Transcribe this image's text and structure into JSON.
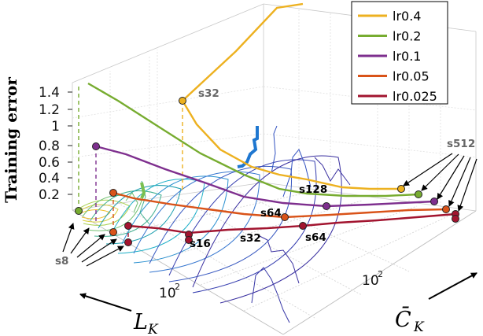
{
  "chart_data": {
    "type": "line",
    "view": "3d",
    "ylabel": "Training error",
    "xlabel": {
      "main": "L",
      "sub": "K"
    },
    "zlabel": {
      "main": "C̄",
      "sub": "K"
    },
    "yticks": [
      "0.2",
      "0.4",
      "0.6",
      "0.8",
      "1",
      "1.2",
      "1.4"
    ],
    "ylim": [
      0,
      1.5
    ],
    "xtick_label": {
      "base": "10",
      "exp": "2"
    },
    "ztick_label": {
      "base": "10",
      "exp": "2"
    },
    "legend_position": "top-right",
    "series": [
      {
        "name": "lr0.4",
        "color": "#EDB120"
      },
      {
        "name": "lr0.2",
        "color": "#77AC30"
      },
      {
        "name": "lr0.1",
        "color": "#7E2F8E"
      },
      {
        "name": "lr0.05",
        "color": "#D95319"
      },
      {
        "name": "lr0.025",
        "color": "#A2142F"
      }
    ],
    "annotations": [
      {
        "text": "s32",
        "color": "#666666"
      },
      {
        "text": "s128",
        "color": "#000000"
      },
      {
        "text": "s64",
        "color": "#000000"
      },
      {
        "text": "s64",
        "color": "#000000"
      },
      {
        "text": "s16",
        "color": "#000000"
      },
      {
        "text": "s32",
        "color": "#000000"
      },
      {
        "text": "s512",
        "color": "#666666"
      },
      {
        "text": "s8",
        "color": "#666666"
      }
    ]
  }
}
